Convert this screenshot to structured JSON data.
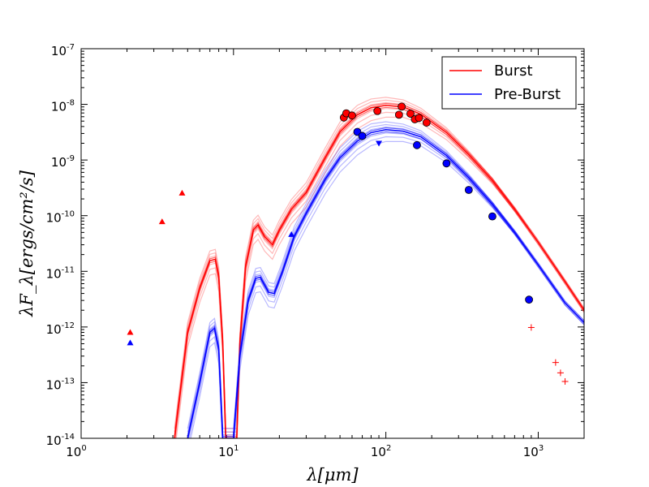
{
  "chart_data": {
    "type": "scatter",
    "title": "",
    "xlabel": "λ[μm]",
    "ylabel": "λF_λ[ergs/cm²/s]",
    "xscale": "log",
    "yscale": "log",
    "xlim": [
      1,
      2000
    ],
    "ylim": [
      1e-14,
      1e-07
    ],
    "x_ticks": [
      {
        "value": 1,
        "base": "10",
        "exp": "0"
      },
      {
        "value": 10,
        "base": "10",
        "exp": "1"
      },
      {
        "value": 100,
        "base": "10",
        "exp": "2"
      },
      {
        "value": 1000,
        "base": "10",
        "exp": "3"
      }
    ],
    "y_ticks": [
      {
        "value": 1e-14,
        "base": "10",
        "exp": "-14"
      },
      {
        "value": 1e-13,
        "base": "10",
        "exp": "-13"
      },
      {
        "value": 1e-12,
        "base": "10",
        "exp": "-12"
      },
      {
        "value": 1e-11,
        "base": "10",
        "exp": "-11"
      },
      {
        "value": 1e-10,
        "base": "10",
        "exp": "-10"
      },
      {
        "value": 1e-09,
        "base": "10",
        "exp": "-9"
      },
      {
        "value": 1e-08,
        "base": "10",
        "exp": "-8"
      },
      {
        "value": 1e-07,
        "base": "10",
        "exp": "-7"
      }
    ],
    "legend": {
      "position": "top-right",
      "entries": [
        {
          "label": "Burst",
          "color": "#ff0000"
        },
        {
          "label": "Pre-Burst",
          "color": "#0000ff"
        }
      ]
    },
    "series": [
      {
        "name": "Burst",
        "color": "#ff0000",
        "detections": [
          [
            53,
            5.8e-09
          ],
          [
            55,
            6.9e-09
          ],
          [
            60,
            6.3e-09
          ],
          [
            88,
            7.6e-09
          ],
          [
            122,
            6.5e-09
          ],
          [
            127,
            9.1e-09
          ],
          [
            145,
            6.8e-09
          ],
          [
            155,
            5.4e-09
          ],
          [
            165,
            5.7e-09
          ],
          [
            185,
            4.7e-09
          ]
        ],
        "upper_limits": [
          [
            2.1,
            8e-13
          ],
          [
            3.4,
            7.8e-11
          ],
          [
            4.6,
            2.55e-10
          ]
        ],
        "mm_points": [
          [
            900,
            9.8e-13
          ],
          [
            1300,
            2.3e-13
          ],
          [
            1400,
            1.5e-13
          ],
          [
            1500,
            1.05e-13
          ]
        ],
        "model_best": [
          [
            4.1,
            1e-14
          ],
          [
            5.0,
            8e-13
          ],
          [
            6.0,
            5e-12
          ],
          [
            7.0,
            1.55e-11
          ],
          [
            7.6,
            1.65e-11
          ],
          [
            8.0,
            8e-12
          ],
          [
            8.5,
            5e-13
          ],
          [
            8.9,
            1e-14
          ],
          [
            10.5,
            1e-14
          ],
          [
            11.0,
            5e-13
          ],
          [
            12.0,
            1.2e-11
          ],
          [
            13.5,
            5.5e-11
          ],
          [
            14.5,
            6.8e-11
          ],
          [
            16.0,
            4.2e-11
          ],
          [
            18.0,
            3e-11
          ],
          [
            20.0,
            5.5e-11
          ],
          [
            24.0,
            1.3e-10
          ],
          [
            30.0,
            2.6e-10
          ],
          [
            40.0,
            1.1e-09
          ],
          [
            50.0,
            3.2e-09
          ],
          [
            65.0,
            6.5e-09
          ],
          [
            80.0,
            8.7e-09
          ],
          [
            100.0,
            9.6e-09
          ],
          [
            130.0,
            9e-09
          ],
          [
            170.0,
            6.6e-09
          ],
          [
            250.0,
            3.1e-09
          ],
          [
            350.0,
            1.25e-09
          ],
          [
            500.0,
            4.3e-10
          ],
          [
            700.0,
            1.3e-10
          ],
          [
            1000.0,
            3.3e-11
          ],
          [
            1500.0,
            6.5e-12
          ],
          [
            2000.0,
            2e-12
          ]
        ]
      },
      {
        "name": "Pre-Burst",
        "color": "#0000ff",
        "detections": [
          [
            65,
            3.2e-09
          ],
          [
            70,
            2.7e-09
          ],
          [
            160,
            1.85e-09
          ],
          [
            250,
            8.7e-10
          ],
          [
            350,
            2.9e-10
          ],
          [
            500,
            9.7e-11
          ],
          [
            870,
            3.1e-12
          ]
        ],
        "upper_limits": [
          [
            2.1,
            5.2e-13
          ],
          [
            24.0,
            4.6e-11
          ]
        ],
        "lower_limits": [
          [
            90,
            2e-09
          ]
        ],
        "model_best": [
          [
            5.0,
            1e-14
          ],
          [
            6.0,
            1e-13
          ],
          [
            7.0,
            8e-13
          ],
          [
            7.5,
            9.5e-13
          ],
          [
            8.0,
            4e-13
          ],
          [
            8.5,
            1e-14
          ],
          [
            10.0,
            1e-14
          ],
          [
            11.0,
            3e-13
          ],
          [
            12.5,
            3e-12
          ],
          [
            14.0,
            7.5e-12
          ],
          [
            15.0,
            7.8e-12
          ],
          [
            17.0,
            4.2e-12
          ],
          [
            18.5,
            4e-12
          ],
          [
            21.0,
            1e-11
          ],
          [
            25.0,
            4.2e-11
          ],
          [
            30.0,
            1.1e-10
          ],
          [
            40.0,
            4.5e-10
          ],
          [
            50.0,
            1.1e-09
          ],
          [
            65.0,
            2.2e-09
          ],
          [
            80.0,
            3.1e-09
          ],
          [
            100.0,
            3.5e-09
          ],
          [
            130.0,
            3.3e-09
          ],
          [
            170.0,
            2.6e-09
          ],
          [
            250.0,
            1.2e-09
          ],
          [
            350.0,
            4.8e-10
          ],
          [
            500.0,
            1.6e-10
          ],
          [
            700.0,
            5e-11
          ],
          [
            1000.0,
            1.3e-11
          ],
          [
            1500.0,
            2.7e-12
          ],
          [
            2000.0,
            1.2e-12
          ]
        ]
      }
    ]
  }
}
